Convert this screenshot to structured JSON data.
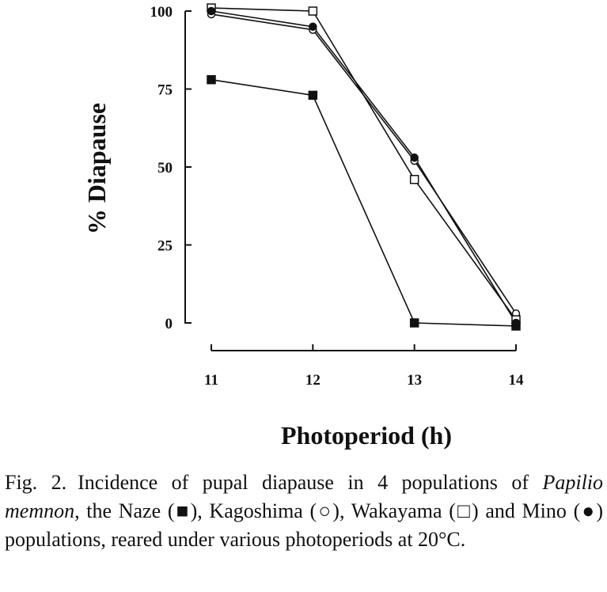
{
  "chart_data": {
    "type": "line",
    "xlabel": "Photoperiod (h)",
    "ylabel": "% Diapause",
    "x": [
      11,
      12,
      13,
      14
    ],
    "x_ticks": [
      "11",
      "12",
      "13",
      "14"
    ],
    "y_ticks": [
      "0",
      "25",
      "50",
      "75",
      "100"
    ],
    "xlim": [
      11,
      14
    ],
    "ylim": [
      0,
      100
    ],
    "grid": false,
    "legend": "none",
    "series": [
      {
        "marker": "filled-square",
        "values": [
          78,
          73,
          0,
          -1
        ]
      },
      {
        "marker": "open-circle",
        "values": [
          99,
          94,
          52,
          3
        ]
      },
      {
        "marker": "open-square",
        "values": [
          101,
          100,
          46,
          1
        ]
      },
      {
        "marker": "filled-circle",
        "values": [
          100,
          95,
          53,
          0
        ]
      }
    ]
  },
  "caption": {
    "fig_label": "Fig. 2.",
    "line1": "Incidence of pupal diapause in 4 populations",
    "of": "of",
    "species": "Papilio memnon",
    "text2": ", the Naze (",
    "sym_naze": "■",
    "text3": "), Kagoshima (",
    "sym_kagoshima": "○",
    "text4": "),",
    "text5": "Wakayama (",
    "sym_wakayama": "□",
    "text6": ") and Mino (",
    "sym_mino": "●",
    "text7": ") populations, reared under",
    "text8": "various photoperiods at 20°C."
  }
}
